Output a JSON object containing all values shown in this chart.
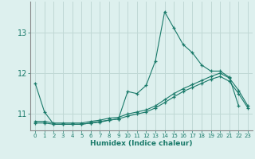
{
  "xlabel": "Humidex (Indice chaleur)",
  "ylabel": "",
  "bg_color": "#ddf0ee",
  "grid_color": "#c0d8d5",
  "line_color": "#1a7a6a",
  "spine_color": "#888888",
  "xlim": [
    -0.5,
    23.5
  ],
  "ylim": [
    10.6,
    13.75
  ],
  "yticks": [
    11,
    12,
    13
  ],
  "xticks": [
    0,
    1,
    2,
    3,
    4,
    5,
    6,
    7,
    8,
    9,
    10,
    11,
    12,
    13,
    14,
    15,
    16,
    17,
    18,
    19,
    20,
    21,
    22,
    23
  ],
  "x": [
    0,
    1,
    2,
    3,
    4,
    5,
    6,
    7,
    8,
    9,
    10,
    11,
    12,
    13,
    14,
    15,
    16,
    17,
    18,
    19,
    20,
    21,
    22,
    23
  ],
  "line1": [
    11.75,
    11.05,
    10.75,
    10.75,
    10.75,
    10.75,
    10.78,
    10.82,
    10.85,
    10.88,
    11.55,
    11.5,
    11.7,
    12.3,
    13.5,
    13.1,
    12.7,
    12.5,
    12.2,
    12.05,
    12.05,
    11.9,
    11.2,
    null
  ],
  "line2": [
    10.82,
    10.82,
    10.78,
    10.78,
    10.78,
    10.78,
    10.82,
    10.85,
    10.9,
    10.92,
    11.0,
    11.05,
    11.1,
    11.2,
    11.35,
    11.5,
    11.62,
    11.72,
    11.82,
    11.92,
    12.0,
    11.88,
    11.58,
    11.2
  ],
  "line3": [
    10.78,
    10.78,
    10.75,
    10.75,
    10.75,
    10.75,
    10.78,
    10.8,
    10.85,
    10.88,
    10.95,
    11.0,
    11.05,
    11.15,
    11.28,
    11.42,
    11.55,
    11.65,
    11.75,
    11.85,
    11.92,
    11.8,
    11.5,
    11.15
  ],
  "xlabel_fontsize": 6.5,
  "ytick_fontsize": 7,
  "xtick_fontsize": 5.0
}
